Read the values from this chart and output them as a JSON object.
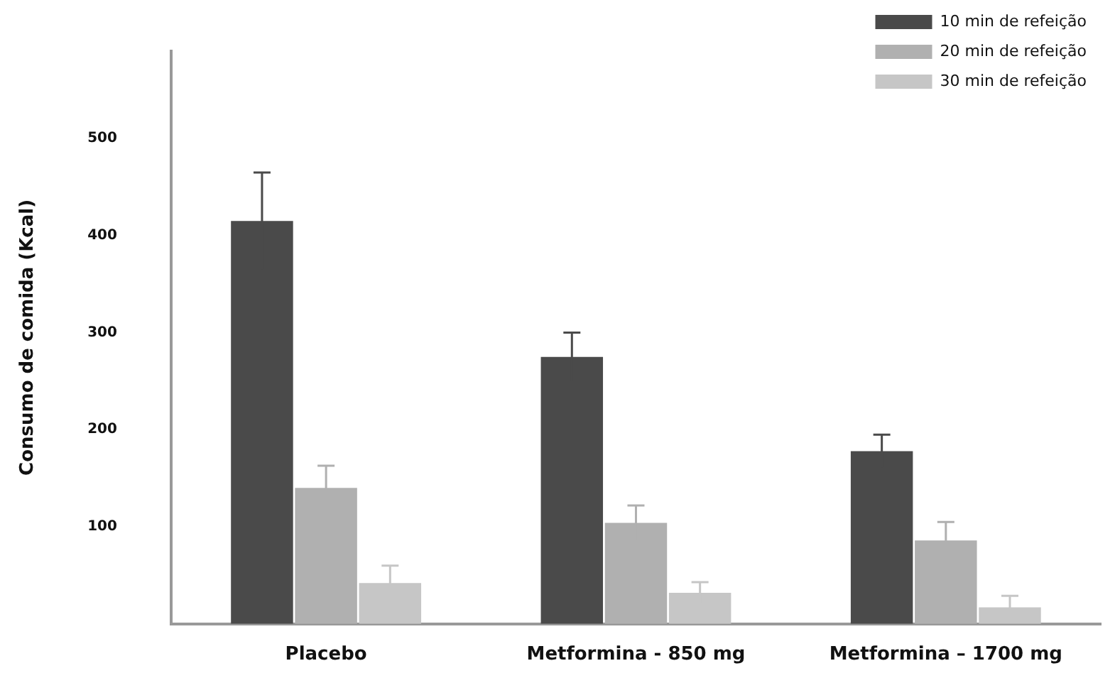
{
  "chart_data": {
    "type": "bar",
    "ylabel": "Consumo de comida (Kcal)",
    "categories": [
      "Placebo",
      "Metformina - 850 mg",
      "Metformina – 1700 mg"
    ],
    "series": [
      {
        "name": "10 min de refeição",
        "color": "#4a4a4a",
        "values": [
          415,
          275,
          178
        ],
        "errors": [
          50,
          25,
          17
        ]
      },
      {
        "name": "20 min de refeição",
        "color": "#b0b0b0",
        "values": [
          140,
          104,
          86
        ],
        "errors": [
          23,
          18,
          19
        ]
      },
      {
        "name": "30 min de refeição",
        "color": "#c6c6c6",
        "values": [
          42,
          32,
          17
        ],
        "errors": [
          18,
          11,
          12
        ]
      }
    ],
    "ylim": [
      0,
      590
    ],
    "yticks": [
      100,
      200,
      300,
      400,
      500
    ],
    "grid": false,
    "legend": "top right"
  }
}
